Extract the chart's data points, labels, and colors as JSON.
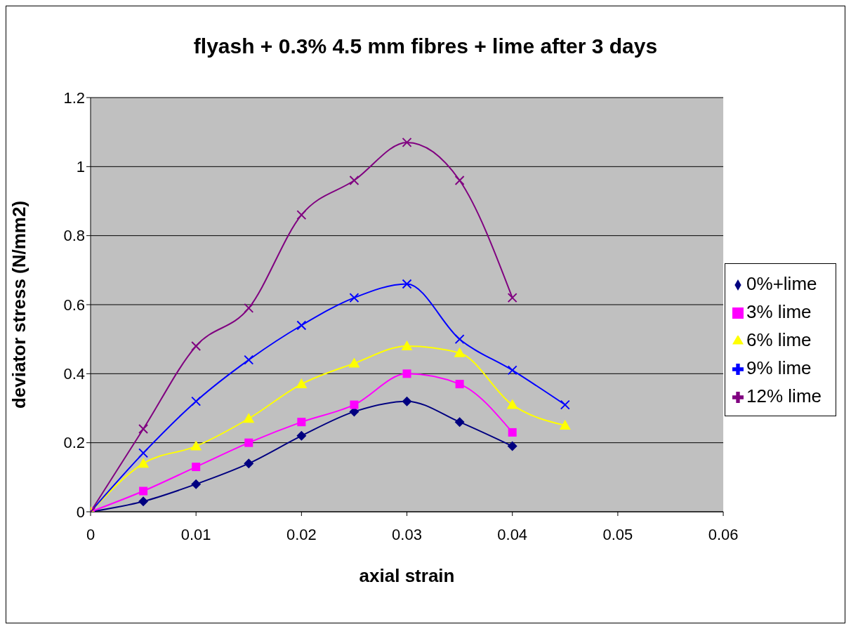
{
  "chart_data": {
    "type": "line",
    "title": "flyash + 0.3% 4.5 mm fibres + lime after 3 days",
    "xlabel": "axial strain",
    "ylabel": "deviator stress (N/mm2)",
    "xlim": [
      0,
      0.06
    ],
    "xticks": [
      0,
      0.01,
      0.02,
      0.03,
      0.04,
      0.05,
      0.06
    ],
    "ylim": [
      0,
      1.2
    ],
    "yticks": [
      0,
      0.2,
      0.4,
      0.6,
      0.8,
      1,
      1.2
    ],
    "grid": "y",
    "legend": "right",
    "series": [
      {
        "name": "0%+lime",
        "color": "#000080",
        "marker": "diamond",
        "x": [
          0,
          0.005,
          0.01,
          0.015,
          0.02,
          0.025,
          0.03,
          0.035,
          0.04
        ],
        "values": [
          0,
          0.03,
          0.08,
          0.14,
          0.22,
          0.29,
          0.32,
          0.26,
          0.19
        ]
      },
      {
        "name": "3% lime",
        "color": "#ff00ff",
        "marker": "square",
        "x": [
          0,
          0.005,
          0.01,
          0.015,
          0.02,
          0.025,
          0.03,
          0.035,
          0.04
        ],
        "values": [
          0,
          0.06,
          0.13,
          0.2,
          0.26,
          0.31,
          0.4,
          0.37,
          0.23
        ]
      },
      {
        "name": "6% lime",
        "color": "#ffff00",
        "marker": "triangle",
        "x": [
          0,
          0.005,
          0.01,
          0.015,
          0.02,
          0.025,
          0.03,
          0.035,
          0.04,
          0.045
        ],
        "values": [
          0,
          0.14,
          0.19,
          0.27,
          0.37,
          0.43,
          0.48,
          0.46,
          0.31,
          0.25
        ]
      },
      {
        "name": "9% lime",
        "color": "#0000ff",
        "marker": "cross",
        "x": [
          0,
          0.005,
          0.01,
          0.015,
          0.02,
          0.025,
          0.03,
          0.035,
          0.04,
          0.045
        ],
        "values": [
          0,
          0.17,
          0.32,
          0.44,
          0.54,
          0.62,
          0.66,
          0.5,
          0.41,
          0.31
        ]
      },
      {
        "name": "12% lime",
        "color": "#800080",
        "marker": "cross",
        "x": [
          0,
          0.005,
          0.01,
          0.015,
          0.02,
          0.025,
          0.03,
          0.035,
          0.04
        ],
        "values": [
          0,
          0.24,
          0.48,
          0.59,
          0.86,
          0.96,
          1.07,
          0.96,
          0.62
        ]
      }
    ]
  }
}
